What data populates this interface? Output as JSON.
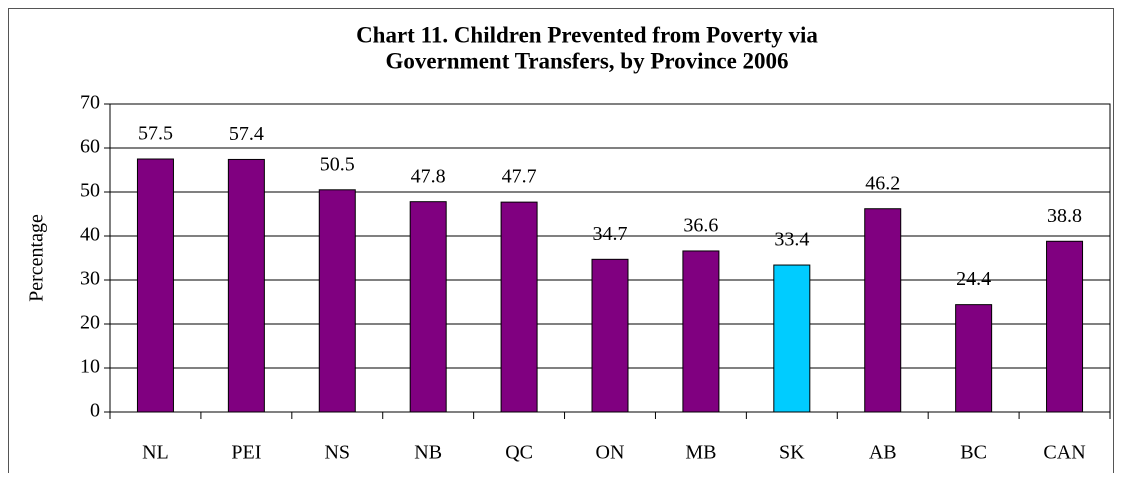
{
  "chart_data": {
    "type": "bar",
    "title_lines": [
      "Chart 11. Children Prevented from Poverty via",
      "Government Transfers, by Province 2006"
    ],
    "y_label": "Percentage",
    "categories": [
      "NL",
      "PEI",
      "NS",
      "NB",
      "QC",
      "ON",
      "MB",
      "SK",
      "AB",
      "BC",
      "CAN"
    ],
    "values": [
      57.5,
      57.4,
      50.5,
      47.8,
      47.7,
      34.7,
      36.6,
      33.4,
      46.2,
      24.4,
      38.8
    ],
    "colors": [
      "#800080",
      "#800080",
      "#800080",
      "#800080",
      "#800080",
      "#800080",
      "#800080",
      "#00ccff",
      "#800080",
      "#800080",
      "#800080"
    ],
    "ylim": [
      0,
      70
    ],
    "yticks": [
      0,
      10,
      20,
      30,
      40,
      50,
      60,
      70
    ],
    "grid": true
  }
}
